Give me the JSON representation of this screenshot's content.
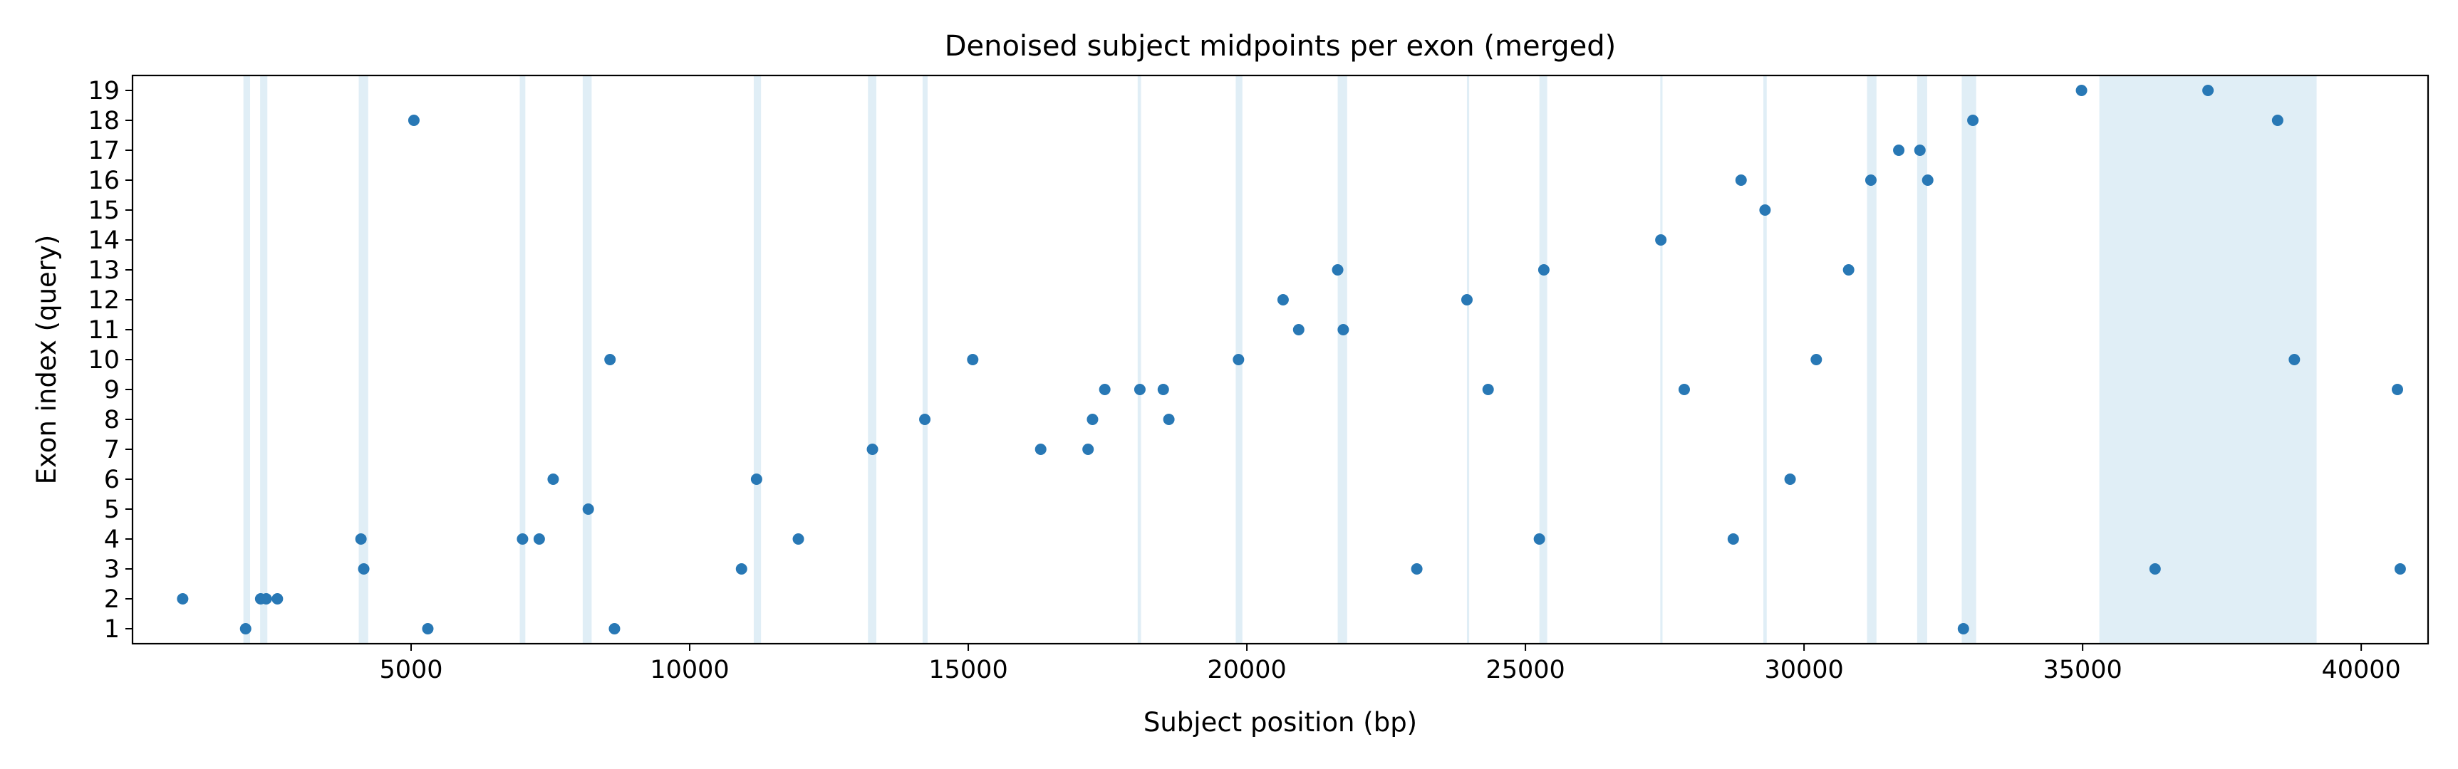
{
  "chart_data": {
    "type": "scatter",
    "title": "Denoised subject midpoints per exon (merged)",
    "xlabel": "Subject position (bp)",
    "ylabel": "Exon index (query)",
    "xlim": [
      0,
      41200
    ],
    "ylim": [
      0.5,
      19.5
    ],
    "xticks": [
      5000,
      10000,
      15000,
      20000,
      25000,
      30000,
      35000,
      40000
    ],
    "yticks": [
      1,
      2,
      3,
      4,
      5,
      6,
      7,
      8,
      9,
      10,
      11,
      12,
      13,
      14,
      15,
      16,
      17,
      18,
      19
    ],
    "point_color": "#2878b5",
    "band_color": "#d6e8f3",
    "grid": false,
    "shaded_regions": [
      [
        1990,
        2110
      ],
      [
        2290,
        2420
      ],
      [
        4060,
        4230
      ],
      [
        6950,
        7050
      ],
      [
        8080,
        8240
      ],
      [
        11150,
        11280
      ],
      [
        13200,
        13350
      ],
      [
        14180,
        14270
      ],
      [
        18040,
        18100
      ],
      [
        19800,
        19920
      ],
      [
        21630,
        21800
      ],
      [
        23950,
        23990
      ],
      [
        25250,
        25390
      ],
      [
        27420,
        27460
      ],
      [
        29270,
        29330
      ],
      [
        31130,
        31300
      ],
      [
        32030,
        32210
      ],
      [
        32830,
        33090
      ],
      [
        35300,
        39200
      ]
    ],
    "points": [
      {
        "x": 900,
        "y": 2
      },
      {
        "x": 2030,
        "y": 1
      },
      {
        "x": 2300,
        "y": 2
      },
      {
        "x": 2400,
        "y": 2
      },
      {
        "x": 2600,
        "y": 2
      },
      {
        "x": 4100,
        "y": 4
      },
      {
        "x": 4150,
        "y": 3
      },
      {
        "x": 5050,
        "y": 18
      },
      {
        "x": 5300,
        "y": 1
      },
      {
        "x": 7000,
        "y": 4
      },
      {
        "x": 7300,
        "y": 4
      },
      {
        "x": 7550,
        "y": 6
      },
      {
        "x": 8180,
        "y": 5
      },
      {
        "x": 8570,
        "y": 10
      },
      {
        "x": 8650,
        "y": 1
      },
      {
        "x": 10930,
        "y": 3
      },
      {
        "x": 11200,
        "y": 6
      },
      {
        "x": 11950,
        "y": 4
      },
      {
        "x": 13280,
        "y": 7
      },
      {
        "x": 14220,
        "y": 8
      },
      {
        "x": 15080,
        "y": 10
      },
      {
        "x": 16300,
        "y": 7
      },
      {
        "x": 17150,
        "y": 7
      },
      {
        "x": 17230,
        "y": 8
      },
      {
        "x": 17450,
        "y": 9
      },
      {
        "x": 18080,
        "y": 9
      },
      {
        "x": 18500,
        "y": 9
      },
      {
        "x": 18600,
        "y": 8
      },
      {
        "x": 19850,
        "y": 10
      },
      {
        "x": 20650,
        "y": 12
      },
      {
        "x": 20930,
        "y": 11
      },
      {
        "x": 21630,
        "y": 13
      },
      {
        "x": 21730,
        "y": 11
      },
      {
        "x": 23050,
        "y": 3
      },
      {
        "x": 23950,
        "y": 12
      },
      {
        "x": 24330,
        "y": 9
      },
      {
        "x": 25250,
        "y": 4
      },
      {
        "x": 25330,
        "y": 13
      },
      {
        "x": 27430,
        "y": 14
      },
      {
        "x": 27850,
        "y": 9
      },
      {
        "x": 28730,
        "y": 4
      },
      {
        "x": 28870,
        "y": 16
      },
      {
        "x": 29300,
        "y": 15
      },
      {
        "x": 29750,
        "y": 6
      },
      {
        "x": 30220,
        "y": 10
      },
      {
        "x": 30800,
        "y": 13
      },
      {
        "x": 31200,
        "y": 16
      },
      {
        "x": 31700,
        "y": 17
      },
      {
        "x": 32080,
        "y": 17
      },
      {
        "x": 32220,
        "y": 16
      },
      {
        "x": 32860,
        "y": 1
      },
      {
        "x": 33030,
        "y": 18
      },
      {
        "x": 34980,
        "y": 19
      },
      {
        "x": 36300,
        "y": 3
      },
      {
        "x": 37250,
        "y": 19
      },
      {
        "x": 38500,
        "y": 18
      },
      {
        "x": 38800,
        "y": 10
      },
      {
        "x": 40650,
        "y": 9
      },
      {
        "x": 40700,
        "y": 3
      }
    ]
  }
}
